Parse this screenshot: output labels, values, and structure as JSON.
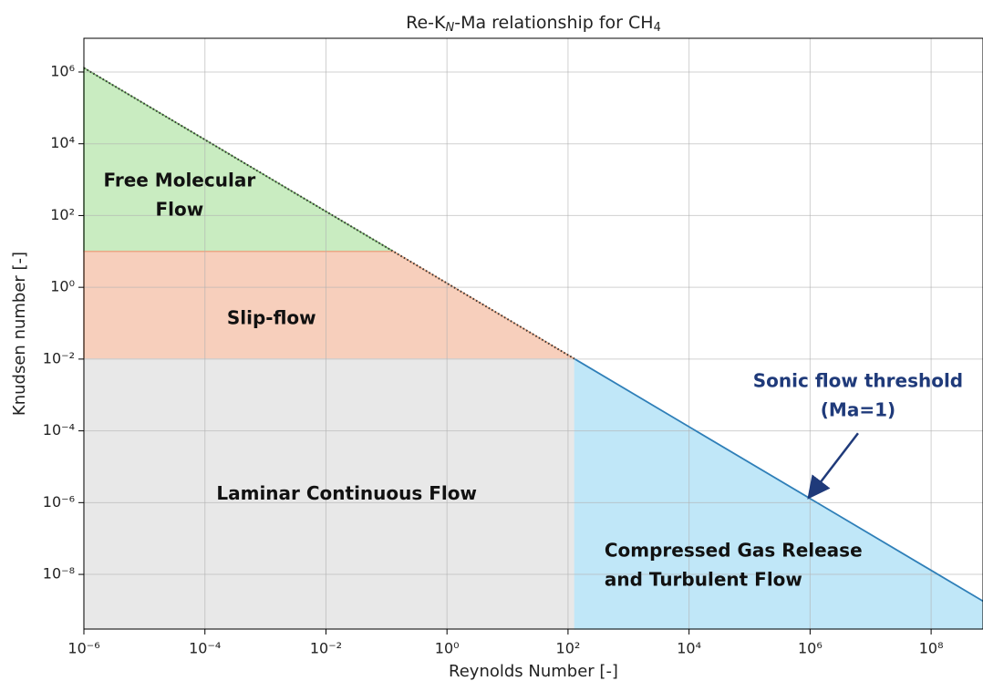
{
  "chart_data": {
    "type": "region",
    "title": [
      "Re-K",
      "N",
      "-Ma relationship for CH",
      "4"
    ],
    "xlabel": "Reynolds Number [-]",
    "ylabel": "Knudsen number [-]",
    "xscale": "log",
    "yscale": "log",
    "grid": true,
    "xlim": [
      1e-06,
      720000000.0
    ],
    "ylim": [
      3e-10,
      8700000.0
    ],
    "xticks": [
      {
        "value": 1e-06,
        "label": "10⁻⁶"
      },
      {
        "value": 0.0001,
        "label": "10⁻⁴"
      },
      {
        "value": 0.01,
        "label": "10⁻²"
      },
      {
        "value": 1,
        "label": "10⁰"
      },
      {
        "value": 100.0,
        "label": "10²"
      },
      {
        "value": 10000.0,
        "label": "10⁴"
      },
      {
        "value": 1000000.0,
        "label": "10⁶"
      },
      {
        "value": 100000000.0,
        "label": "10⁸"
      }
    ],
    "yticks": [
      {
        "value": 1e-08,
        "label": "10⁻⁸"
      },
      {
        "value": 1e-06,
        "label": "10⁻⁶"
      },
      {
        "value": 0.0001,
        "label": "10⁻⁴"
      },
      {
        "value": 0.01,
        "label": "10⁻²"
      },
      {
        "value": 1,
        "label": "10⁰"
      },
      {
        "value": 100.0,
        "label": "10²"
      },
      {
        "value": 10000.0,
        "label": "10⁴"
      },
      {
        "value": 1000000.0,
        "label": "10⁶"
      }
    ],
    "areas": [
      {
        "label": [
          "Free Molecular",
          "Flow"
        ],
        "color": "#c9ecc1",
        "edge": "#7cb86e",
        "x": [
          1e-06,
          1e-06,
          0.13
        ],
        "y": [
          10,
          1300000.0,
          10
        ],
        "label_x": 3.8e-05,
        "label_y": 350,
        "label_align": "middle"
      },
      {
        "label": [
          "Slip-flow"
        ],
        "color": "#f7cfbc",
        "edge": "#e9a886",
        "x": [
          1e-06,
          1e-06,
          0.13,
          130
        ],
        "y": [
          0.01,
          10,
          10,
          0.01
        ],
        "label_x": 0.00126,
        "label_y": 0.13,
        "label_align": "middle"
      },
      {
        "label": [
          "Laminar Continuous Flow"
        ],
        "color": "#e8e8e8",
        "edge": "#e8e8e8",
        "x": [
          1e-06,
          1e-06,
          130,
          130
        ],
        "y": [
          3e-10,
          0.01,
          0.01,
          3e-10
        ],
        "label_x": 0.022,
        "label_y": 1.7e-06,
        "label_align": "middle"
      },
      {
        "label": [
          "Compressed Gas Release",
          "and Turbulent Flow"
        ],
        "color": "#c0e7f8",
        "edge": "#c0e7f8",
        "x": [
          130,
          130,
          720000000.0,
          720000000.0
        ],
        "y": [
          3e-10,
          0.01,
          1.8e-09,
          3e-10
        ],
        "label_x": 400,
        "label_y": 1.7e-08,
        "label_align": "start"
      }
    ],
    "series": [
      {
        "style": "dotted",
        "color": "#333333",
        "x": [
          1e-06,
          130
        ],
        "values": [
          1300000.0,
          0.01
        ]
      },
      {
        "style": "solid",
        "color": "#2f7fb8",
        "x": [
          130,
          720000000.0
        ],
        "values": [
          0.01,
          1.8e-09
        ]
      }
    ],
    "annotation": {
      "text": [
        "Sonic flow threshold",
        "(Ma=1)"
      ],
      "color": "#1f3a7a",
      "xy": [
        1000000.0,
        1.3e-06
      ],
      "xytext": [
        6200000.0,
        0.00089
      ]
    }
  }
}
